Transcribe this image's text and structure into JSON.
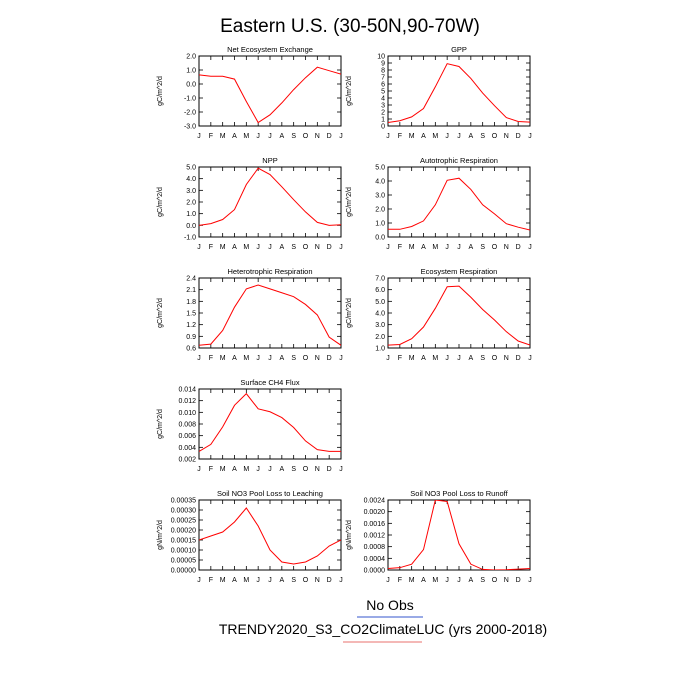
{
  "page": {
    "title": "Eastern U.S. (30-50N,90-70W)",
    "legend": {
      "obs_label": "No Obs",
      "obs_color": "#3355cc",
      "model_label": "TRENDY2020_S3_CO2ClimateLUC (yrs 2000-2018)",
      "model_color": "#e8706e"
    }
  },
  "chart_data": [
    {
      "type": "line",
      "title": "Net Ecosystem Exchange",
      "ylabel": "gC/m^2/d",
      "x": [
        "J",
        "F",
        "M",
        "A",
        "M",
        "J",
        "J",
        "A",
        "S",
        "O",
        "N",
        "D",
        "J"
      ],
      "ylim": [
        -3.0,
        2.0
      ],
      "yticks": [
        "2.0",
        "1.0",
        "0.0",
        "-1.0",
        "-2.0",
        "-3.0"
      ],
      "series": [
        {
          "color": "#ff0000",
          "values": [
            0.65,
            0.55,
            0.55,
            0.35,
            -1.25,
            -2.75,
            -2.2,
            -1.35,
            -0.4,
            0.45,
            1.2,
            0.95,
            0.7
          ]
        }
      ]
    },
    {
      "type": "line",
      "title": "GPP",
      "ylabel": "gC/m^2/d",
      "x": [
        "J",
        "F",
        "M",
        "A",
        "M",
        "J",
        "J",
        "A",
        "S",
        "O",
        "N",
        "D",
        "J"
      ],
      "ylim": [
        0,
        10
      ],
      "yticks": [
        "10",
        "9",
        "8",
        "7",
        "6",
        "5",
        "4",
        "3",
        "2",
        "1",
        "0"
      ],
      "series": [
        {
          "color": "#ff0000",
          "values": [
            0.5,
            0.75,
            1.3,
            2.5,
            5.6,
            8.9,
            8.5,
            6.8,
            4.7,
            2.9,
            1.2,
            0.65,
            0.55
          ]
        }
      ]
    },
    {
      "type": "line",
      "title": "NPP",
      "ylabel": "gC/m^2/d",
      "x": [
        "J",
        "F",
        "M",
        "A",
        "M",
        "J",
        "J",
        "A",
        "S",
        "O",
        "N",
        "D",
        "J"
      ],
      "ylim": [
        -1.0,
        5.0
      ],
      "yticks": [
        "5.0",
        "4.0",
        "3.0",
        "2.0",
        "1.0",
        "0.0",
        "-1.0"
      ],
      "series": [
        {
          "color": "#ff0000",
          "values": [
            0.0,
            0.15,
            0.5,
            1.35,
            3.5,
            4.9,
            4.35,
            3.3,
            2.2,
            1.15,
            0.25,
            0.0,
            0.05
          ]
        }
      ]
    },
    {
      "type": "line",
      "title": "Autotrophic Respiration",
      "ylabel": "gC/m^2/d",
      "x": [
        "J",
        "F",
        "M",
        "A",
        "M",
        "J",
        "J",
        "A",
        "S",
        "O",
        "N",
        "D",
        "J"
      ],
      "ylim": [
        0,
        5.0
      ],
      "yticks": [
        "5.0",
        "4.0",
        "3.0",
        "2.0",
        "1.0",
        "0.0"
      ],
      "series": [
        {
          "color": "#ff0000",
          "values": [
            0.55,
            0.55,
            0.75,
            1.15,
            2.3,
            4.05,
            4.2,
            3.4,
            2.3,
            1.65,
            0.95,
            0.7,
            0.5
          ]
        }
      ]
    },
    {
      "type": "line",
      "title": "Heterotrophic Respiration",
      "ylabel": "gC/m^2/d",
      "x": [
        "J",
        "F",
        "M",
        "A",
        "M",
        "J",
        "J",
        "A",
        "S",
        "O",
        "N",
        "D",
        "J"
      ],
      "ylim": [
        0.6,
        2.4
      ],
      "yticks": [
        "2.4",
        "2.1",
        "1.8",
        "1.5",
        "1.2",
        "0.9",
        "0.6"
      ],
      "series": [
        {
          "color": "#ff0000",
          "values": [
            0.67,
            0.7,
            1.05,
            1.65,
            2.12,
            2.22,
            2.12,
            2.02,
            1.92,
            1.72,
            1.45,
            0.88,
            0.67
          ]
        }
      ]
    },
    {
      "type": "line",
      "title": "Ecosystem Respiration",
      "ylabel": "gC/m^2/d",
      "x": [
        "J",
        "F",
        "M",
        "A",
        "M",
        "J",
        "J",
        "A",
        "S",
        "O",
        "N",
        "D",
        "J"
      ],
      "ylim": [
        1.0,
        7.0
      ],
      "yticks": [
        "7.0",
        "6.0",
        "5.0",
        "4.0",
        "3.0",
        "2.0",
        "1.0"
      ],
      "series": [
        {
          "color": "#ff0000",
          "values": [
            1.25,
            1.3,
            1.8,
            2.8,
            4.4,
            6.25,
            6.3,
            5.35,
            4.3,
            3.4,
            2.4,
            1.6,
            1.25
          ]
        }
      ]
    },
    {
      "type": "line",
      "title": "Surface CH4 Flux",
      "ylabel": "gC/m^2/d",
      "x": [
        "J",
        "F",
        "M",
        "A",
        "M",
        "J",
        "J",
        "A",
        "S",
        "O",
        "N",
        "D",
        "J"
      ],
      "ylim": [
        0.002,
        0.014
      ],
      "yticks": [
        "0.014",
        "0.012",
        "0.010",
        "0.008",
        "0.006",
        "0.004",
        "0.002"
      ],
      "series": [
        {
          "color": "#ff0000",
          "values": [
            0.0033,
            0.0045,
            0.0075,
            0.0112,
            0.0132,
            0.0106,
            0.0101,
            0.0091,
            0.0074,
            0.0051,
            0.0036,
            0.0033,
            0.0033
          ]
        }
      ]
    },
    {
      "type": "line",
      "title": "Soil NO3 Pool Loss to Leaching",
      "ylabel": "gN/m^2/d",
      "x": [
        "J",
        "F",
        "M",
        "A",
        "M",
        "J",
        "J",
        "A",
        "S",
        "O",
        "N",
        "D",
        "J"
      ],
      "ylim": [
        0,
        0.00035
      ],
      "yticks": [
        "0.00035",
        "0.00030",
        "0.00025",
        "0.00020",
        "0.00015",
        "0.00010",
        "0.00005",
        "0.00000"
      ],
      "series": [
        {
          "color": "#ff0000",
          "values": [
            0.00015,
            0.00017,
            0.00019,
            0.00024,
            0.00031,
            0.00022,
            0.0001,
            4e-05,
            3e-05,
            4e-05,
            7e-05,
            0.00012,
            0.00015
          ]
        }
      ]
    },
    {
      "type": "line",
      "title": "Soil NO3 Pool Loss to Runoff",
      "ylabel": "gN/m^2/d",
      "x": [
        "J",
        "F",
        "M",
        "A",
        "M",
        "J",
        "J",
        "A",
        "S",
        "O",
        "N",
        "D",
        "J"
      ],
      "ylim": [
        0,
        0.0024
      ],
      "yticks": [
        "0.0024",
        "0.0020",
        "0.0016",
        "0.0012",
        "0.0008",
        "0.0004",
        "0.0000"
      ],
      "series": [
        {
          "color": "#ff0000",
          "values": [
            5e-05,
            8e-05,
            0.0002,
            0.0007,
            0.0024,
            0.00235,
            0.0009,
            0.0002,
            2e-05,
            0.0,
            1e-05,
            3e-05,
            5e-05
          ]
        }
      ]
    }
  ]
}
